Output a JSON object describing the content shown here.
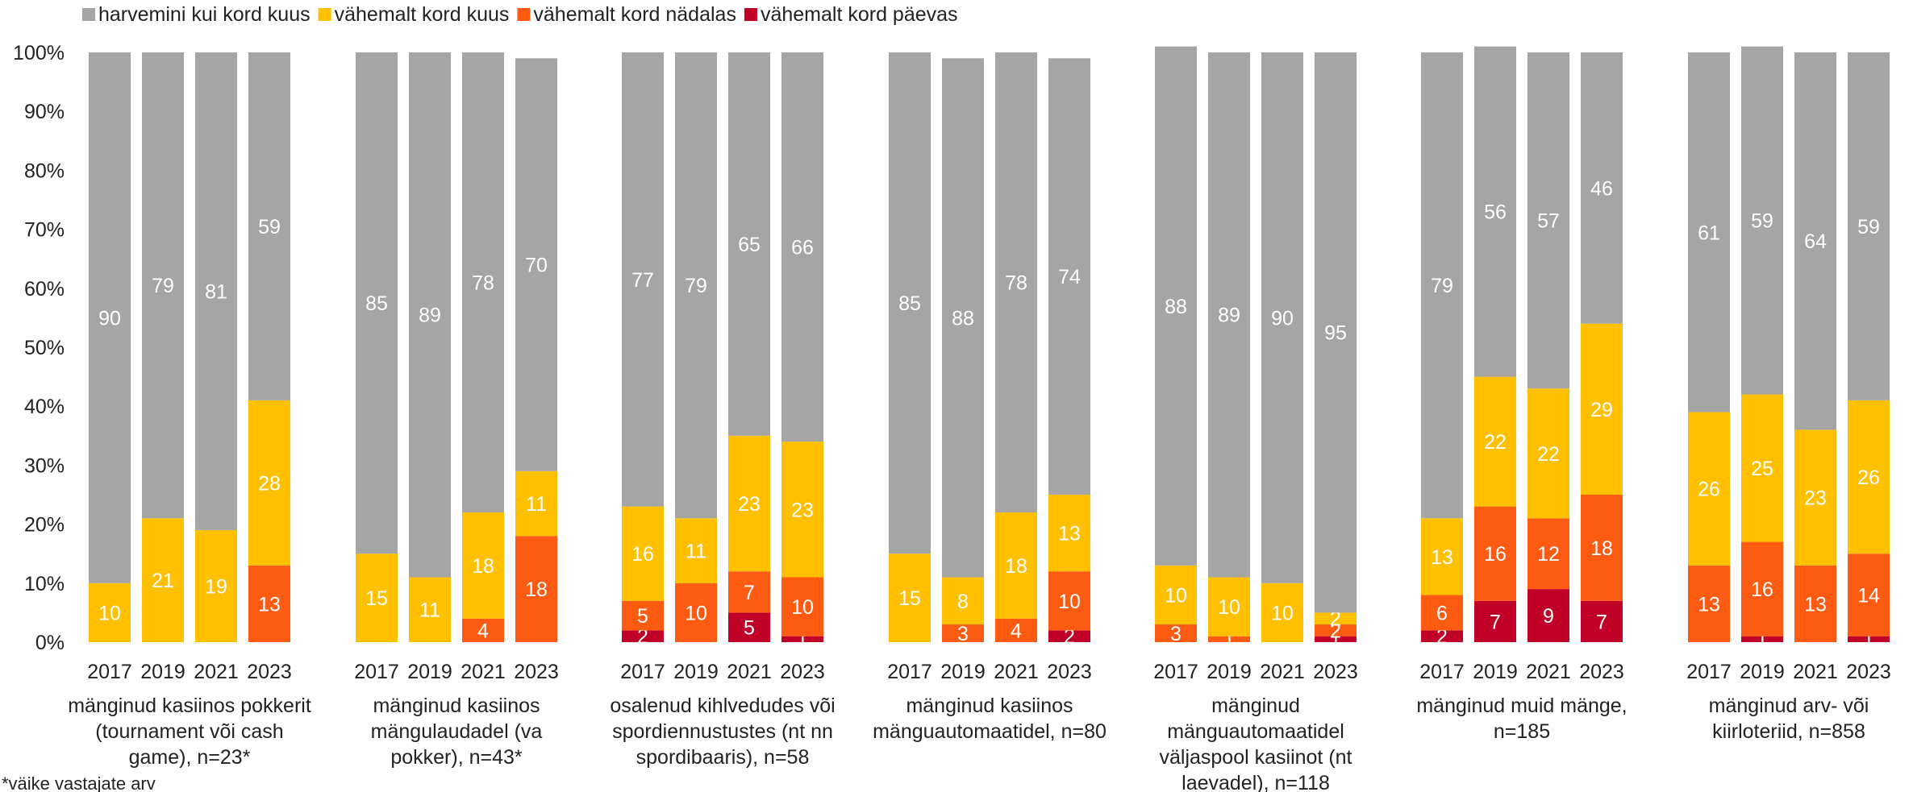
{
  "chart_data": {
    "type": "bar",
    "stacked": true,
    "title": "",
    "xlabel": "",
    "ylabel": "",
    "ylim": [
      0,
      100
    ],
    "y_ticks": [
      "0%",
      "10%",
      "20%",
      "30%",
      "40%",
      "50%",
      "60%",
      "70%",
      "80%",
      "90%",
      "100%"
    ],
    "legend_position": "top-left",
    "grid": false,
    "note": "*väike vastajate arv",
    "series_colors": {
      "harvemini": "#a5a5a5",
      "kuus": "#ffc000",
      "nadalas": "#fe5b12",
      "paevas": "#c00027"
    },
    "legend": [
      {
        "key": "harvemini",
        "label": "harvemini kui kord kuus",
        "color": "#a5a5a5"
      },
      {
        "key": "kuus",
        "label": "vähemalt kord kuus",
        "color": "#ffc000"
      },
      {
        "key": "nadalas",
        "label": "vähemalt kord nädalas",
        "color": "#fe5b12"
      },
      {
        "key": "paevas",
        "label": "vähemalt kord päevas",
        "color": "#c00027"
      }
    ],
    "groups": [
      {
        "label": [
          "mänginud kasiinos pokkerit",
          "(tournament või cash",
          "game), n=23*"
        ],
        "bars": [
          {
            "year": "2017",
            "paevas": null,
            "nadalas": null,
            "kuus": 10,
            "harvemini": 90
          },
          {
            "year": "2019",
            "paevas": null,
            "nadalas": null,
            "kuus": 21,
            "harvemini": 79
          },
          {
            "year": "2021",
            "paevas": null,
            "nadalas": null,
            "kuus": 19,
            "harvemini": 81
          },
          {
            "year": "2023",
            "paevas": 0,
            "nadalas": 13,
            "kuus": 28,
            "harvemini": 59
          }
        ]
      },
      {
        "label": [
          "mänginud kasiinos",
          "mängulaudadel (va",
          "pokker), n=43*"
        ],
        "bars": [
          {
            "year": "2017",
            "paevas": null,
            "nadalas": null,
            "kuus": 15,
            "harvemini": 85
          },
          {
            "year": "2019",
            "paevas": null,
            "nadalas": null,
            "kuus": 11,
            "harvemini": 89
          },
          {
            "year": "2021",
            "paevas": null,
            "nadalas": 4,
            "kuus": 18,
            "harvemini": 78
          },
          {
            "year": "2023",
            "paevas": 0,
            "nadalas": 18,
            "kuus": 11,
            "harvemini": 70
          }
        ]
      },
      {
        "label": [
          "osalenud kihlvedudes või",
          "spordiennustustes (nt nn",
          "spordibaaris), n=58"
        ],
        "bars": [
          {
            "year": "2017",
            "paevas": 2,
            "nadalas": 5,
            "kuus": 16,
            "harvemini": 77
          },
          {
            "year": "2019",
            "paevas": null,
            "nadalas": 10,
            "kuus": 11,
            "harvemini": 79
          },
          {
            "year": "2021",
            "paevas": 5,
            "nadalas": 7,
            "kuus": 23,
            "harvemini": 65
          },
          {
            "year": "2023",
            "paevas": 1,
            "nadalas": 10,
            "kuus": 23,
            "harvemini": 66
          }
        ]
      },
      {
        "label": [
          "mänginud kasiinos",
          "mänguautomaatidel, n=80"
        ],
        "bars": [
          {
            "year": "2017",
            "paevas": null,
            "nadalas": null,
            "kuus": 15,
            "harvemini": 85
          },
          {
            "year": "2019",
            "paevas": null,
            "nadalas": 3,
            "kuus": 8,
            "harvemini": 88
          },
          {
            "year": "2021",
            "paevas": null,
            "nadalas": 4,
            "kuus": 18,
            "harvemini": 78
          },
          {
            "year": "2023",
            "paevas": 2,
            "nadalas": 10,
            "kuus": 13,
            "harvemini": 74
          }
        ]
      },
      {
        "label": [
          "mänginud",
          "mänguautomaatidel",
          "väljaspool kasiinot (nt",
          "laevadel), n=118"
        ],
        "bars": [
          {
            "year": "2017",
            "paevas": null,
            "nadalas": 3,
            "kuus": 10,
            "harvemini": 88
          },
          {
            "year": "2019",
            "paevas": null,
            "nadalas": 1,
            "kuus": 10,
            "harvemini": 89
          },
          {
            "year": "2021",
            "paevas": null,
            "nadalas": null,
            "kuus": 10,
            "harvemini": 90
          },
          {
            "year": "2023",
            "paevas": 1,
            "nadalas": 2,
            "kuus": 2,
            "harvemini": 95
          }
        ]
      },
      {
        "label": [
          "mänginud muid mänge,",
          "n=185"
        ],
        "bars": [
          {
            "year": "2017",
            "paevas": 2,
            "nadalas": 6,
            "kuus": 13,
            "harvemini": 79
          },
          {
            "year": "2019",
            "paevas": 7,
            "nadalas": 16,
            "kuus": 22,
            "harvemini": 56
          },
          {
            "year": "2021",
            "paevas": 9,
            "nadalas": 12,
            "kuus": 22,
            "harvemini": 57
          },
          {
            "year": "2023",
            "paevas": 7,
            "nadalas": 18,
            "kuus": 29,
            "harvemini": 46
          }
        ]
      },
      {
        "label": [
          "mänginud arv- või",
          "kiirloteriid, n=858"
        ],
        "bars": [
          {
            "year": "2017",
            "paevas": null,
            "nadalas": 13,
            "kuus": 26,
            "harvemini": 61
          },
          {
            "year": "2019",
            "paevas": 1,
            "nadalas": 16,
            "kuus": 25,
            "harvemini": 59
          },
          {
            "year": "2021",
            "paevas": null,
            "nadalas": 13,
            "kuus": 23,
            "harvemini": 64
          },
          {
            "year": "2023",
            "paevas": 1,
            "nadalas": 14,
            "kuus": 26,
            "harvemini": 59
          }
        ]
      }
    ]
  }
}
